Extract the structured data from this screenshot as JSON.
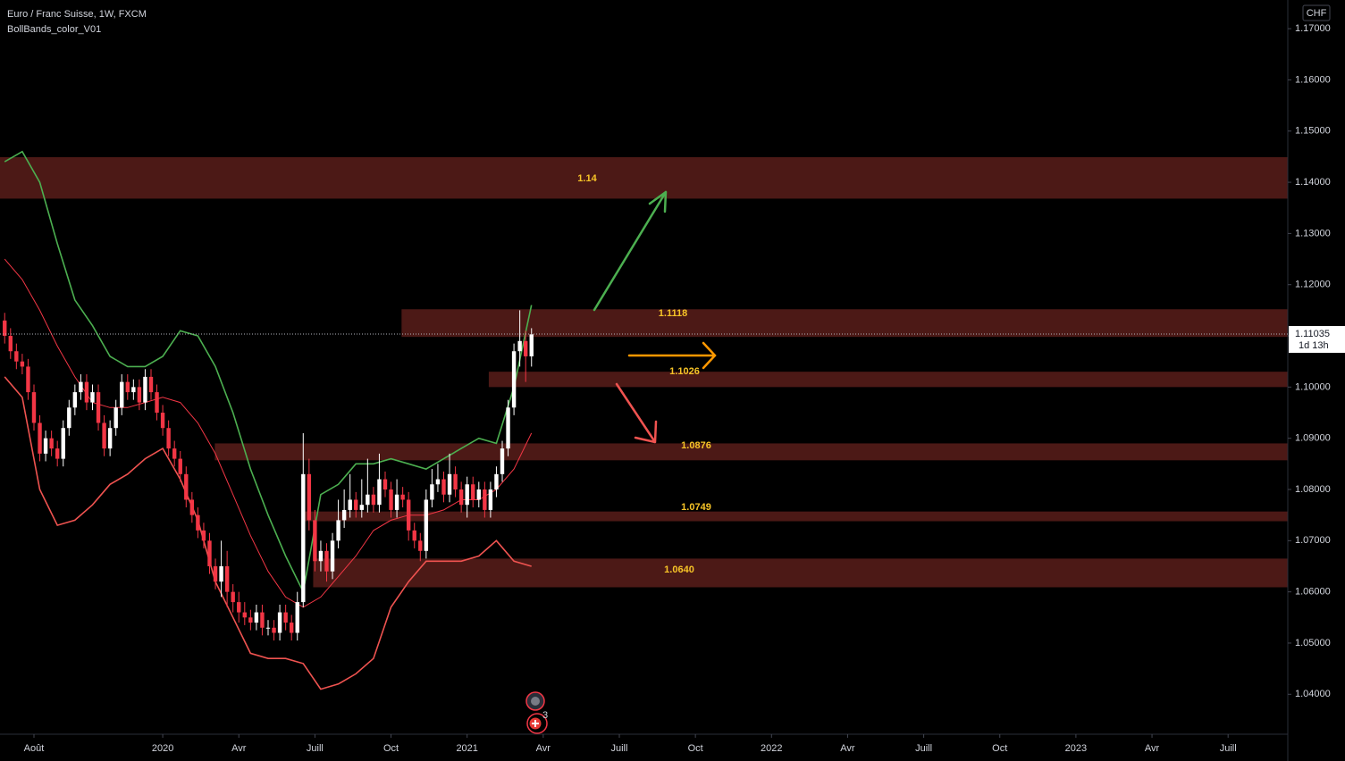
{
  "chart_data": {
    "type": "candlestick",
    "title": "Euro / Franc Suisse, 1W, FXCM",
    "subtitle": "BollBands_color_V01",
    "currency": "CHF",
    "xlim": [
      -0.8,
      219.2
    ],
    "ylim": [
      1.0322,
      1.1756
    ],
    "yticks": [
      {
        "value": 1.17,
        "label": "1.17000"
      },
      {
        "value": 1.16,
        "label": "1.16000"
      },
      {
        "value": 1.15,
        "label": "1.15000"
      },
      {
        "value": 1.14,
        "label": "1.14000"
      },
      {
        "value": 1.13,
        "label": "1.13000"
      },
      {
        "value": 1.12,
        "label": "1.12000"
      },
      {
        "value": 1.11,
        "label": "1.11000"
      },
      {
        "value": 1.1,
        "label": "1.10000"
      },
      {
        "value": 1.09,
        "label": "1.09000"
      },
      {
        "value": 1.08,
        "label": "1.08000"
      },
      {
        "value": 1.07,
        "label": "1.07000"
      },
      {
        "value": 1.06,
        "label": "1.06000"
      },
      {
        "value": 1.05,
        "label": "1.05000"
      },
      {
        "value": 1.04,
        "label": "1.04000"
      }
    ],
    "xticks": [
      {
        "value": 5,
        "label": "Août"
      },
      {
        "value": 27,
        "label": "2020"
      },
      {
        "value": 40,
        "label": "Avr"
      },
      {
        "value": 53,
        "label": "Juill"
      },
      {
        "value": 66,
        "label": "Oct"
      },
      {
        "value": 79,
        "label": "2021"
      },
      {
        "value": 92,
        "label": "Avr"
      },
      {
        "value": 105,
        "label": "Juill"
      },
      {
        "value": 118,
        "label": "Oct"
      },
      {
        "value": 131,
        "label": "2022"
      },
      {
        "value": 144,
        "label": "Avr"
      },
      {
        "value": 157,
        "label": "Juill"
      },
      {
        "value": 170,
        "label": "Oct"
      },
      {
        "value": 183,
        "label": "2023"
      },
      {
        "value": 196,
        "label": "Avr"
      },
      {
        "value": 209,
        "label": "Juill"
      }
    ],
    "up_color": "#ffffff",
    "down_color": "#f23645",
    "candles": [
      [
        1.113,
        1.1145,
        1.1085,
        1.11
      ],
      [
        1.11,
        1.1115,
        1.1055,
        1.107
      ],
      [
        1.107,
        1.1085,
        1.1035,
        1.105
      ],
      [
        1.105,
        1.1065,
        1.1025,
        1.104
      ],
      [
        1.104,
        1.1055,
        1.0975,
        1.099
      ],
      [
        1.099,
        1.1005,
        1.0915,
        1.093
      ],
      [
        1.093,
        1.0945,
        1.0855,
        1.087
      ],
      [
        1.087,
        1.0915,
        1.0855,
        1.09
      ],
      [
        1.09,
        1.0915,
        1.0865,
        1.088
      ],
      [
        1.088,
        1.0895,
        1.0845,
        1.086
      ],
      [
        1.086,
        1.0935,
        1.0845,
        1.092
      ],
      [
        1.092,
        1.0975,
        1.0905,
        1.096
      ],
      [
        1.096,
        1.1005,
        1.0945,
        1.099
      ],
      [
        1.099,
        1.1025,
        1.0975,
        1.101
      ],
      [
        1.101,
        1.1025,
        1.0955,
        1.097
      ],
      [
        1.097,
        1.1005,
        1.0955,
        1.099
      ],
      [
        1.099,
        1.1005,
        1.0915,
        1.093
      ],
      [
        1.093,
        1.0945,
        1.0865,
        1.088
      ],
      [
        1.088,
        1.0935,
        1.0865,
        1.092
      ],
      [
        1.092,
        1.0975,
        1.0905,
        1.096
      ],
      [
        1.096,
        1.1025,
        1.0945,
        1.101
      ],
      [
        1.101,
        1.1025,
        1.0975,
        1.099
      ],
      [
        1.099,
        1.1015,
        1.0975,
        1.1
      ],
      [
        1.1,
        1.1015,
        1.0955,
        1.097
      ],
      [
        1.097,
        1.1035,
        1.0955,
        1.102
      ],
      [
        1.102,
        1.1035,
        1.0975,
        1.099
      ],
      [
        1.099,
        1.1005,
        1.0935,
        1.095
      ],
      [
        1.095,
        1.0965,
        1.0905,
        1.092
      ],
      [
        1.092,
        1.0935,
        1.0865,
        1.088
      ],
      [
        1.088,
        1.0895,
        1.0845,
        1.086
      ],
      [
        1.086,
        1.0875,
        1.0815,
        1.083
      ],
      [
        1.083,
        1.0845,
        1.0765,
        1.078
      ],
      [
        1.078,
        1.0795,
        1.0735,
        1.075
      ],
      [
        1.075,
        1.0765,
        1.0705,
        1.072
      ],
      [
        1.072,
        1.0735,
        1.0685,
        1.07
      ],
      [
        1.07,
        1.0715,
        1.0635,
        1.065
      ],
      [
        1.065,
        1.0665,
        1.0605,
        1.062
      ],
      [
        1.062,
        1.07,
        1.059,
        1.065
      ],
      [
        1.065,
        1.068,
        1.057,
        1.06
      ],
      [
        1.06,
        1.0615,
        1.056,
        1.058
      ],
      [
        1.058,
        1.06,
        1.054,
        1.056
      ],
      [
        1.056,
        1.058,
        1.0535,
        1.055
      ],
      [
        1.055,
        1.0565,
        1.0525,
        1.054
      ],
      [
        1.054,
        1.0575,
        1.0525,
        1.056
      ],
      [
        1.056,
        1.0575,
        1.0515,
        1.053
      ],
      [
        1.053,
        1.0545,
        1.0515,
        1.053
      ],
      [
        1.053,
        1.0545,
        1.0505,
        1.052
      ],
      [
        1.052,
        1.0575,
        1.0505,
        1.056
      ],
      [
        1.056,
        1.0575,
        1.0525,
        1.054
      ],
      [
        1.054,
        1.0555,
        1.0505,
        1.052
      ],
      [
        1.052,
        1.06,
        1.0505,
        1.058
      ],
      [
        1.058,
        1.091,
        1.057,
        1.083
      ],
      [
        1.083,
        1.086,
        1.072,
        1.074
      ],
      [
        1.074,
        1.076,
        1.064,
        1.066
      ],
      [
        1.066,
        1.07,
        1.064,
        1.068
      ],
      [
        1.068,
        1.0695,
        1.062,
        1.064
      ],
      [
        1.064,
        1.0715,
        1.0625,
        1.07
      ],
      [
        1.07,
        1.078,
        1.0685,
        1.074
      ],
      [
        1.074,
        1.08,
        1.0725,
        1.076
      ],
      [
        1.076,
        1.083,
        1.0745,
        1.078
      ],
      [
        1.078,
        1.0795,
        1.0745,
        1.076
      ],
      [
        1.076,
        1.082,
        1.0745,
        1.077
      ],
      [
        1.077,
        1.086,
        1.0755,
        1.079
      ],
      [
        1.079,
        1.0805,
        1.0755,
        1.077
      ],
      [
        1.077,
        1.087,
        1.0755,
        1.082
      ],
      [
        1.082,
        1.0835,
        1.0785,
        1.08
      ],
      [
        1.08,
        1.0815,
        1.0745,
        1.076
      ],
      [
        1.076,
        1.082,
        1.0745,
        1.079
      ],
      [
        1.079,
        1.0805,
        1.0765,
        1.078
      ],
      [
        1.078,
        1.0795,
        1.07,
        1.072
      ],
      [
        1.072,
        1.0735,
        1.0685,
        1.07
      ],
      [
        1.07,
        1.0715,
        1.066,
        1.068
      ],
      [
        1.068,
        1.08,
        1.0665,
        1.078
      ],
      [
        1.078,
        1.084,
        1.0765,
        1.081
      ],
      [
        1.081,
        1.085,
        1.0795,
        1.082
      ],
      [
        1.082,
        1.0835,
        1.0775,
        1.079
      ],
      [
        1.079,
        1.087,
        1.0775,
        1.083
      ],
      [
        1.083,
        1.0845,
        1.0785,
        1.08
      ],
      [
        1.08,
        1.0815,
        1.0755,
        1.077
      ],
      [
        1.077,
        1.0825,
        1.0745,
        1.081
      ],
      [
        1.081,
        1.0825,
        1.0765,
        1.078
      ],
      [
        1.078,
        1.0815,
        1.0765,
        1.08
      ],
      [
        1.08,
        1.0815,
        1.0745,
        1.076
      ],
      [
        1.076,
        1.0815,
        1.0745,
        1.08
      ],
      [
        1.08,
        1.0845,
        1.0785,
        1.083
      ],
      [
        1.083,
        1.0895,
        1.0815,
        1.088
      ],
      [
        1.088,
        1.0975,
        1.0865,
        1.096
      ],
      [
        1.096,
        1.1085,
        1.0945,
        1.107
      ],
      [
        1.107,
        1.115,
        1.104,
        1.109
      ],
      [
        1.109,
        1.111,
        1.101,
        1.106
      ],
      [
        1.106,
        1.1115,
        1.104,
        1.1103
      ]
    ],
    "band_x": [
      0,
      3,
      6,
      9,
      12,
      15,
      18,
      21,
      24,
      27,
      30,
      33,
      36,
      39,
      42,
      45,
      48,
      51,
      54,
      57,
      60,
      63,
      66,
      69,
      72,
      75,
      78,
      81,
      84,
      87,
      90
    ],
    "bands": [
      {
        "color": "#4caf50",
        "values": [
          1.144,
          1.146,
          1.14,
          1.128,
          1.117,
          1.112,
          1.106,
          1.104,
          1.104,
          1.106,
          1.111,
          1.11,
          1.104,
          1.095,
          1.084,
          1.075,
          1.067,
          1.06,
          1.079,
          1.081,
          1.085,
          1.085,
          1.086,
          1.085,
          1.084,
          1.086,
          1.088,
          1.09,
          1.089,
          1.1,
          1.116
        ]
      },
      {
        "color": "#f23645",
        "values": [
          1.125,
          1.121,
          1.115,
          1.108,
          1.102,
          1.097,
          1.096,
          1.096,
          1.097,
          1.098,
          1.097,
          1.093,
          1.087,
          1.079,
          1.071,
          1.064,
          1.059,
          1.057,
          1.059,
          1.063,
          1.067,
          1.072,
          1.074,
          1.075,
          1.075,
          1.076,
          1.078,
          1.078,
          1.08,
          1.084,
          1.091
        ]
      },
      {
        "color": "#ef5350",
        "values": [
          1.102,
          1.098,
          1.08,
          1.073,
          1.074,
          1.077,
          1.081,
          1.083,
          1.086,
          1.088,
          1.082,
          1.074,
          1.062,
          1.055,
          1.048,
          1.047,
          1.047,
          1.046,
          1.041,
          1.042,
          1.044,
          1.047,
          1.057,
          1.062,
          1.066,
          1.066,
          1.066,
          1.067,
          1.07,
          1.066,
          1.065
        ]
      }
    ],
    "zone_color": "#4c1916",
    "label_color": "#f7c427",
    "zones": [
      {
        "label": "1.14",
        "low": 1.1368,
        "high": 1.1449,
        "start": -0.8
      },
      {
        "label": "1.1118",
        "low": 1.1098,
        "high": 1.1152,
        "start": 67.8
      },
      {
        "label": "1.1026",
        "low": 1.1,
        "high": 1.103,
        "start": 82.7
      },
      {
        "label": "1.0876",
        "low": 1.0857,
        "high": 1.089,
        "start": 35.9
      },
      {
        "label": "1.0749",
        "low": 1.0738,
        "high": 1.0757,
        "start": 51
      },
      {
        "label": "1.0640",
        "low": 1.0609,
        "high": 1.0665,
        "start": 52.7
      }
    ],
    "last_price": 1.11035,
    "countdown": "1d 13h",
    "events_badge": "3"
  }
}
